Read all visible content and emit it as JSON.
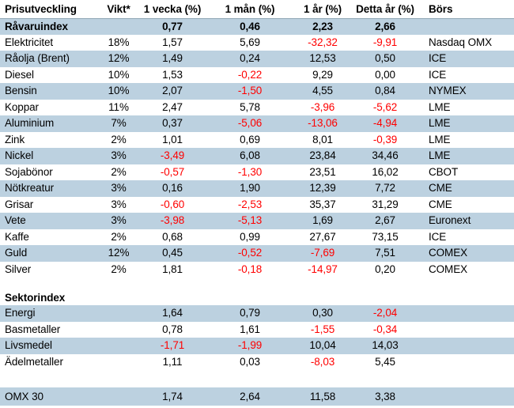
{
  "colors": {
    "row_stripe": "#BCD1E0",
    "negative_value": "#FF0000",
    "index_row_border": "#90A7B6",
    "text": "#000000",
    "background": "#FFFFFF"
  },
  "chart_data": {
    "type": "table",
    "title": "Prisutveckling",
    "columns": [
      "Prisutveckling",
      "Vikt*",
      "1 vecka (%)",
      "1 mån (%)",
      "1 år (%)",
      "Detta år (%)",
      "Börs"
    ],
    "index_row": {
      "name": "Råvaruindex",
      "vikt": "",
      "w1": "0,77",
      "m1": "0,46",
      "y1": "2,23",
      "ytd": "2,66",
      "bors": ""
    },
    "commodities": [
      {
        "name": "Elektricitet",
        "vikt": "18%",
        "w1": "1,57",
        "m1": "5,69",
        "y1": "-32,32",
        "ytd": "-9,91",
        "bors": "Nasdaq OMX"
      },
      {
        "name": "Råolja (Brent)",
        "vikt": "12%",
        "w1": "1,49",
        "m1": "0,24",
        "y1": "12,53",
        "ytd": "0,50",
        "bors": "ICE"
      },
      {
        "name": "Diesel",
        "vikt": "10%",
        "w1": "1,53",
        "m1": "-0,22",
        "y1": "9,29",
        "ytd": "0,00",
        "bors": "ICE"
      },
      {
        "name": "Bensin",
        "vikt": "10%",
        "w1": "2,07",
        "m1": "-1,50",
        "y1": "4,55",
        "ytd": "0,84",
        "bors": "NYMEX"
      },
      {
        "name": "Koppar",
        "vikt": "11%",
        "w1": "2,47",
        "m1": "5,78",
        "y1": "-3,96",
        "ytd": "-5,62",
        "bors": "LME"
      },
      {
        "name": "Aluminium",
        "vikt": "7%",
        "w1": "0,37",
        "m1": "-5,06",
        "y1": "-13,06",
        "ytd": "-4,94",
        "bors": "LME"
      },
      {
        "name": "Zink",
        "vikt": "2%",
        "w1": "1,01",
        "m1": "0,69",
        "y1": "8,01",
        "ytd": "-0,39",
        "bors": "LME"
      },
      {
        "name": "Nickel",
        "vikt": "3%",
        "w1": "-3,49",
        "m1": "6,08",
        "y1": "23,84",
        "ytd": "34,46",
        "bors": "LME"
      },
      {
        "name": "Sojabönor",
        "vikt": "2%",
        "w1": "-0,57",
        "m1": "-1,30",
        "y1": "23,51",
        "ytd": "16,02",
        "bors": "CBOT"
      },
      {
        "name": "Nötkreatur",
        "vikt": "3%",
        "w1": "0,16",
        "m1": "1,90",
        "y1": "12,39",
        "ytd": "7,72",
        "bors": "CME"
      },
      {
        "name": "Grisar",
        "vikt": "3%",
        "w1": "-0,60",
        "m1": "-2,53",
        "y1": "35,37",
        "ytd": "31,29",
        "bors": "CME"
      },
      {
        "name": "Vete",
        "vikt": "3%",
        "w1": "-3,98",
        "m1": "-5,13",
        "y1": "1,69",
        "ytd": "2,67",
        "bors": "Euronext"
      },
      {
        "name": "Kaffe",
        "vikt": "2%",
        "w1": "0,68",
        "m1": "0,99",
        "y1": "27,67",
        "ytd": "73,15",
        "bors": "ICE"
      },
      {
        "name": "Guld",
        "vikt": "12%",
        "w1": "0,45",
        "m1": "-0,52",
        "y1": "-7,69",
        "ytd": "7,51",
        "bors": "COMEX"
      },
      {
        "name": "Silver",
        "vikt": "2%",
        "w1": "1,81",
        "m1": "-0,18",
        "y1": "-14,97",
        "ytd": "0,20",
        "bors": "COMEX"
      }
    ],
    "sector_label": "Sektorindex",
    "sectors": [
      {
        "name": "Energi",
        "w1": "1,64",
        "m1": "0,79",
        "y1": "0,30",
        "ytd": "-2,04"
      },
      {
        "name": "Basmetaller",
        "w1": "0,78",
        "m1": "1,61",
        "y1": "-1,55",
        "ytd": "-0,34"
      },
      {
        "name": "Livsmedel",
        "w1": "-1,71",
        "m1": "-1,99",
        "y1": "10,04",
        "ytd": "14,03"
      },
      {
        "name": "Ädelmetaller",
        "w1": "1,11",
        "m1": "0,03",
        "y1": "-8,03",
        "ytd": "5,45"
      }
    ],
    "omx_row": {
      "name": "OMX 30",
      "w1": "1,74",
      "m1": "2,64",
      "y1": "11,58",
      "ytd": "3,38"
    }
  }
}
